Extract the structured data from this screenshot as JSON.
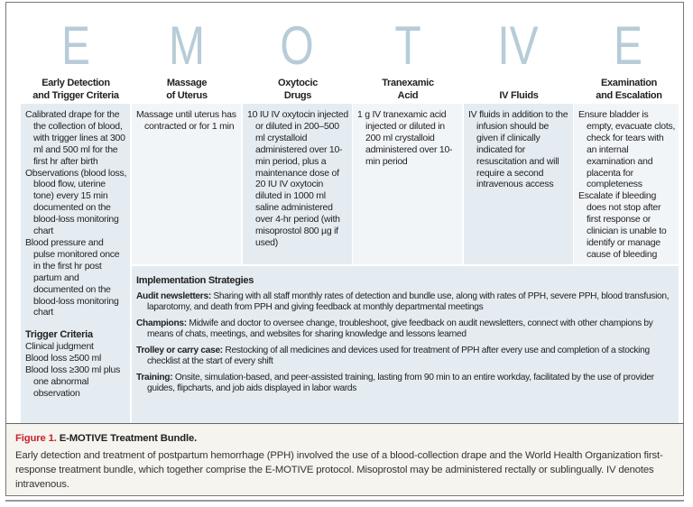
{
  "columns": [
    {
      "letter": "E",
      "header": [
        "Early Detection",
        "and Trigger Criteria"
      ],
      "items": [
        "Calibrated drape for the the collection of blood, with trigger lines at 300 ml and 500 ml for the first hr after birth",
        "Observations (blood loss, blood flow, uterine tone) every 15 min documented on the blood-loss monitoring chart",
        "Blood pressure and pulse monitored once in the first hr post partum and documented on the blood-loss monitoring chart"
      ],
      "subheading": "Trigger Criteria",
      "subitems": [
        "Clinical judgment",
        "Blood loss ≥500 ml",
        "Blood loss ≥300 ml plus one abnormal observation"
      ]
    },
    {
      "letter": "M",
      "header": [
        "Massage",
        "of Uterus"
      ],
      "items": [
        "Massage until uterus has contracted or for 1 min"
      ]
    },
    {
      "letter": "O",
      "header": [
        "Oxytocic",
        "Drugs"
      ],
      "items": [
        "10 IU IV oxytocin injected or diluted in 200–500 ml crystalloid administered over 10-min period, plus a maintenance dose of 20 IU IV oxytocin diluted in 1000 ml saline administered over 4-hr period (with misoprostol 800 µg if used)"
      ]
    },
    {
      "letter": "T",
      "header": [
        "Tranexamic",
        "Acid"
      ],
      "items": [
        "1 g IV tranexamic acid injected or diluted in 200 ml crystalloid administered over 10-min period"
      ]
    },
    {
      "letter": "IV",
      "header": [
        "",
        "IV Fluids"
      ],
      "items": [
        "IV fluids in addition to the infusion should be given if clinically indicated for resuscitation and will require a second intravenous access"
      ]
    },
    {
      "letter": "E",
      "header": [
        "Examination",
        "and Escalation"
      ],
      "items": [
        "Ensure bladder is empty, evacuate clots, check for tears with an internal examination and placenta for completeness",
        "Escalate if bleeding does not stop after first response or clinician is unable to identify or manage cause of bleeding"
      ]
    }
  ],
  "implementation": {
    "title": "Implementation Strategies",
    "items": [
      {
        "label": "Audit newsletters:",
        "text": " Sharing with all staff monthly rates of detection and bundle use, along with rates of PPH, severe PPH, blood transfusion, laparotomy, and death from PPH and giving feedback at monthly departmental meetings"
      },
      {
        "label": "Champions:",
        "text": " Midwife and doctor to oversee change, troubleshoot, give feedback on audit newsletters, connect with other champions by means of chats, meetings, and websites for sharing knowledge and lessons learned"
      },
      {
        "label": "Trolley or carry case:",
        "text": " Restocking of all medicines and devices used for treatment of PPH after every use and completion of a stocking checklist at the start of every shift"
      },
      {
        "label": "Training:",
        "text": " Onsite, simulation-based, and peer-assisted training, lasting from 90 min to an entire workday, facilitated by the use of provider guides, flipcharts, and job aids displayed in labor wards"
      }
    ]
  },
  "caption": {
    "figure_label": "Figure 1.",
    "title": "E-MOTIVE Treatment Bundle.",
    "text": "Early detection and treatment of postpartum hemorrhage (PPH) involved the use of a blood-collection drape and the World Health Organization first-response treatment bundle, which together comprise the E-MOTIVE protocol. Misoprostol may be administered rectally or sublingually. IV denotes intravenous."
  },
  "colors": {
    "letter": "#b7ccd8",
    "shade": "#e4ecf2",
    "light": "#f2f5f8",
    "caption_bg": "#f6f4ee",
    "figure_label": "#c8202e"
  }
}
